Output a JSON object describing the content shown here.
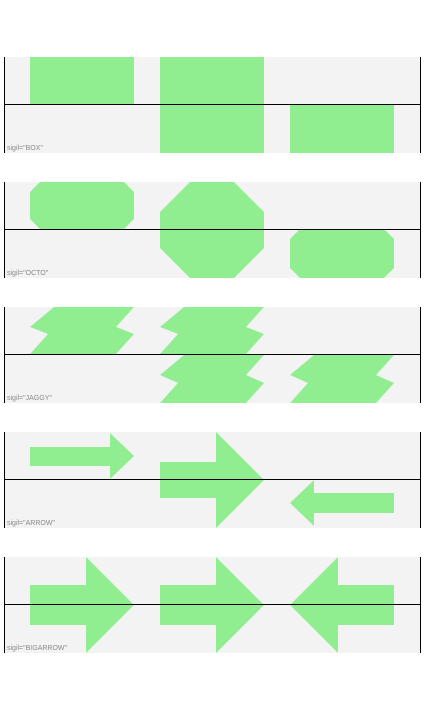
{
  "panels": [
    {
      "sigil": "BOX",
      "label": "sigil=\"BOX\""
    },
    {
      "sigil": "OCTO",
      "label": "sigil=\"OCTO\""
    },
    {
      "sigil": "JAGGY",
      "label": "sigil=\"JAGGY\""
    },
    {
      "sigil": "ARROW",
      "label": "sigil=\"ARROW\""
    },
    {
      "sigil": "BIGARROW",
      "label": "sigil=\"BIGARROW\""
    }
  ],
  "colors": {
    "shape_fill": "#90ee90",
    "panel_bg": "#f3f3f3",
    "line": "#000000",
    "label": "#8a8a8a"
  }
}
